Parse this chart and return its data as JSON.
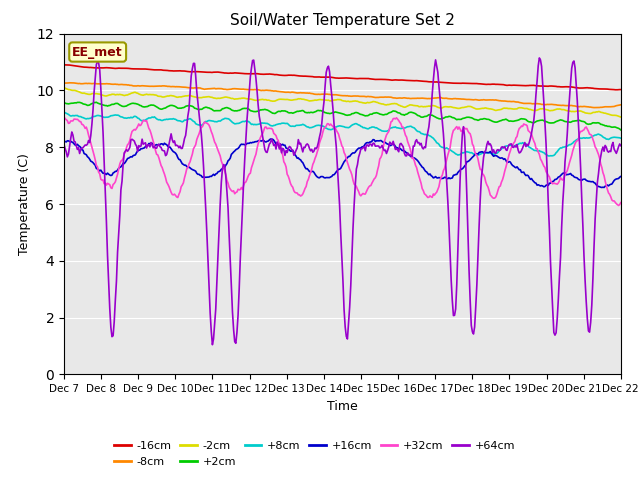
{
  "title": "Soil/Water Temperature Set 2",
  "xlabel": "Time",
  "ylabel": "Temperature (C)",
  "ylim": [
    0,
    12
  ],
  "yticks": [
    0,
    2,
    4,
    6,
    8,
    10,
    12
  ],
  "xlim": [
    0,
    15
  ],
  "xtick_labels": [
    "Dec 7",
    "Dec 8",
    "Dec 9",
    "Dec 10",
    "Dec 11",
    "Dec 12",
    "Dec 13",
    "Dec 14",
    "Dec 15",
    "Dec 16",
    "Dec 17",
    "Dec 18",
    "Dec 19",
    "Dec 20",
    "Dec 21",
    "Dec 22"
  ],
  "annotation": "EE_met",
  "background_color": "#e8e8e8",
  "series": {
    "-16cm": {
      "color": "#dd0000"
    },
    "-8cm": {
      "color": "#ff8800"
    },
    "-2cm": {
      "color": "#dddd00"
    },
    "+2cm": {
      "color": "#00cc00"
    },
    "+8cm": {
      "color": "#00cccc"
    },
    "+16cm": {
      "color": "#0000cc"
    },
    "+32cm": {
      "color": "#ff44cc"
    },
    "+64cm": {
      "color": "#9900cc"
    }
  }
}
